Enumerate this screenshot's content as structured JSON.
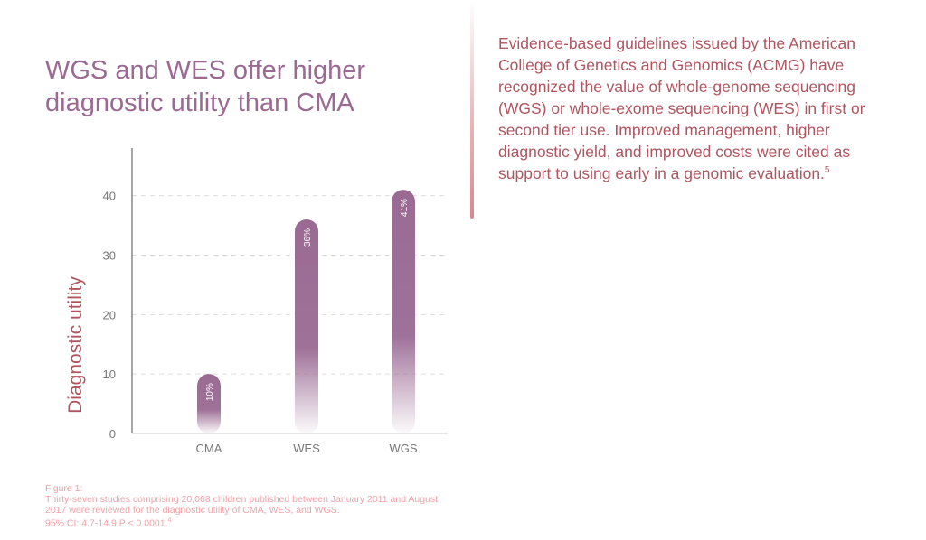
{
  "heading": "WGS and WES offer higher diagnostic utility than CMA",
  "paragraph": {
    "text": "Evidence-based guidelines issued by the American College of Genetics and Genomics (ACMG) have recognized the value of whole-genome sequencing (WGS) or whole-exome sequencing (WES) in first or second tier use. Improved management, higher diagnostic yield, and improved costs were cited as support to using early in a genomic evaluation.",
    "footnote_ref": "5"
  },
  "caption": {
    "label": "Figure 1:",
    "line1": "Thirty-seven studies comprising 20,068 children published between January 2011 and August 2017 were reviewed for the diagnostic utility of CMA, WES, and WGS.",
    "line2": "95% CI: 4.7-14.9,P < 0.0001.",
    "line2_ref": "4"
  },
  "colors": {
    "heading": "#9a6a93",
    "bar": "#9a6a93",
    "body_text": "#b05560",
    "caption": "#f0a2a8",
    "axis_label": "#b05560",
    "tick": "#777777",
    "grid": "#dddddd"
  },
  "chart_data": {
    "type": "bar",
    "categories": [
      "CMA",
      "WES",
      "WGS"
    ],
    "values": [
      10,
      36,
      41
    ],
    "data_labels": [
      "10%",
      "36%",
      "41%"
    ],
    "ylabel": "Diagnostic utility",
    "xlabel": "",
    "ylim": [
      0,
      48
    ],
    "yticks": [
      0,
      10,
      20,
      30,
      40
    ],
    "grid": true
  }
}
